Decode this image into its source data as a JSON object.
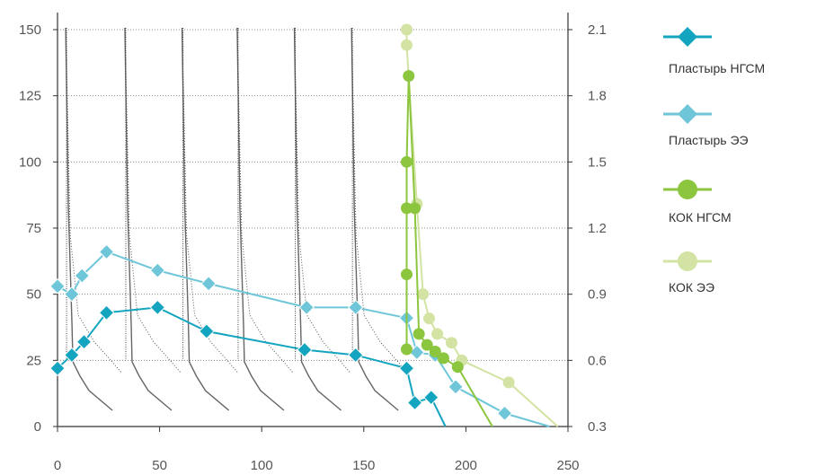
{
  "chart_data": {
    "type": "line",
    "xlim": [
      0,
      250
    ],
    "ylim_left": [
      0,
      150
    ],
    "ylim_right": [
      0.3,
      2.1
    ],
    "x_ticks": [
      "0",
      "50",
      "100",
      "150",
      "200",
      "250"
    ],
    "y_left_ticks": [
      "0",
      "25",
      "50",
      "75",
      "100",
      "125",
      "150"
    ],
    "y_right_ticks": [
      "0.3",
      "0.6",
      "0.9",
      "1.2",
      "1.5",
      "1.8",
      "2.1"
    ],
    "grid": "horizontal-dotted",
    "legend_position": "right",
    "series": [
      {
        "name": "Пластырь НГСМ",
        "axis": "left",
        "marker": "diamond",
        "color": "#13a5bf",
        "points": [
          [
            0,
            22
          ],
          [
            7,
            27
          ],
          [
            13,
            32
          ],
          [
            24,
            43
          ],
          [
            49,
            45
          ],
          [
            73,
            36
          ],
          [
            121,
            29
          ],
          [
            146,
            27
          ],
          [
            171,
            22
          ],
          [
            175,
            9
          ],
          [
            183,
            11
          ],
          [
            190,
            0
          ]
        ]
      },
      {
        "name": "Пластырь ЭЭ",
        "axis": "left",
        "marker": "diamond",
        "color": "#6ec6d8",
        "points": [
          [
            0,
            53
          ],
          [
            7,
            50
          ],
          [
            12,
            57
          ],
          [
            24,
            66
          ],
          [
            49,
            59
          ],
          [
            74,
            54
          ],
          [
            122,
            45
          ],
          [
            146,
            45
          ],
          [
            171,
            41
          ],
          [
            176,
            28
          ],
          [
            185,
            27
          ],
          [
            195,
            15
          ],
          [
            219,
            5
          ],
          [
            241,
            0
          ]
        ]
      },
      {
        "name": "КОК НГСМ",
        "axis": "right",
        "marker": "circle",
        "color": "#8cc63e",
        "points": [
          [
            171,
            0.65
          ],
          [
            171,
            0.99
          ],
          [
            171,
            1.29
          ],
          [
            171,
            1.5
          ],
          [
            172,
            1.89
          ],
          [
            175,
            1.29
          ],
          [
            177,
            0.72
          ],
          [
            181,
            0.67
          ],
          [
            185,
            0.64
          ],
          [
            189,
            0.61
          ],
          [
            196,
            0.57
          ],
          [
            213,
            0.3
          ]
        ]
      },
      {
        "name": "КОК ЭЭ",
        "axis": "right",
        "marker": "circle",
        "color": "#d2e3a3",
        "points": [
          [
            171,
            2.1
          ],
          [
            171,
            2.03
          ],
          [
            176,
            1.31
          ],
          [
            179,
            0.9
          ],
          [
            182,
            0.79
          ],
          [
            186,
            0.72
          ],
          [
            193,
            0.68
          ],
          [
            198,
            0.6
          ],
          [
            221,
            0.5
          ],
          [
            245,
            0.3
          ]
        ]
      }
    ],
    "pk_curve_starts_x": [
      4,
      33,
      61,
      88,
      116,
      144
    ],
    "pk_curve_count": 6
  }
}
